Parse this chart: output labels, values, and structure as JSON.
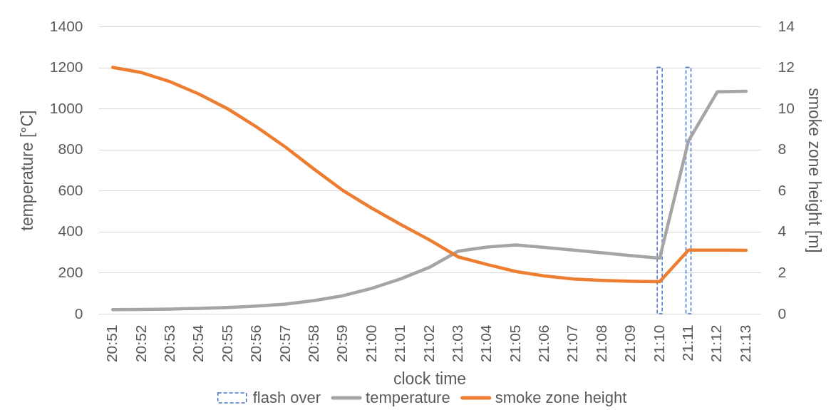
{
  "chart_data": {
    "type": "line",
    "xlabel": "clock time",
    "ylabel": "temperature [°C]",
    "y2label": "smoke zone height [m]",
    "categories": [
      "20:51",
      "20:52",
      "20:53",
      "20:54",
      "20:55",
      "20:56",
      "20:57",
      "20:58",
      "20:59",
      "21:00",
      "21:01",
      "21:02",
      "21:03",
      "21:04",
      "21:05",
      "21:06",
      "21:07",
      "21:08",
      "21:09",
      "21:10",
      "21:11",
      "21:12",
      "21:13"
    ],
    "series": [
      {
        "name": "flash over",
        "type": "bar",
        "color": "#4472c4",
        "line_style": "dashed",
        "values": [
          null,
          null,
          null,
          null,
          null,
          null,
          null,
          null,
          null,
          null,
          null,
          null,
          null,
          null,
          null,
          null,
          null,
          null,
          null,
          1200,
          1200,
          null,
          null
        ]
      },
      {
        "name": "temperature",
        "color": "#a5a5a5",
        "values": [
          20,
          21,
          23,
          26,
          30,
          37,
          47,
          64,
          88,
          124,
          170,
          226,
          305,
          325,
          335,
          323,
          310,
          297,
          283,
          271,
          842,
          1081,
          1084
        ]
      },
      {
        "name": "smoke zone height",
        "color": "#ed7d31",
        "axis": "y2",
        "values": [
          12.0,
          11.75,
          11.3,
          10.7,
          9.98,
          9.1,
          8.12,
          7.04,
          6.0,
          5.14,
          4.35,
          3.6,
          2.77,
          2.4,
          2.06,
          1.84,
          1.69,
          1.62,
          1.58,
          1.56,
          3.1,
          3.1,
          3.09
        ]
      }
    ],
    "ylim": [
      0,
      1400
    ],
    "yticks": [
      0,
      200,
      400,
      600,
      800,
      1000,
      1200,
      1400
    ],
    "y2lim": [
      0,
      14
    ],
    "y2ticks": [
      0,
      2,
      4,
      6,
      8,
      10,
      12,
      14
    ],
    "grid": "y",
    "legend": "bottom"
  }
}
